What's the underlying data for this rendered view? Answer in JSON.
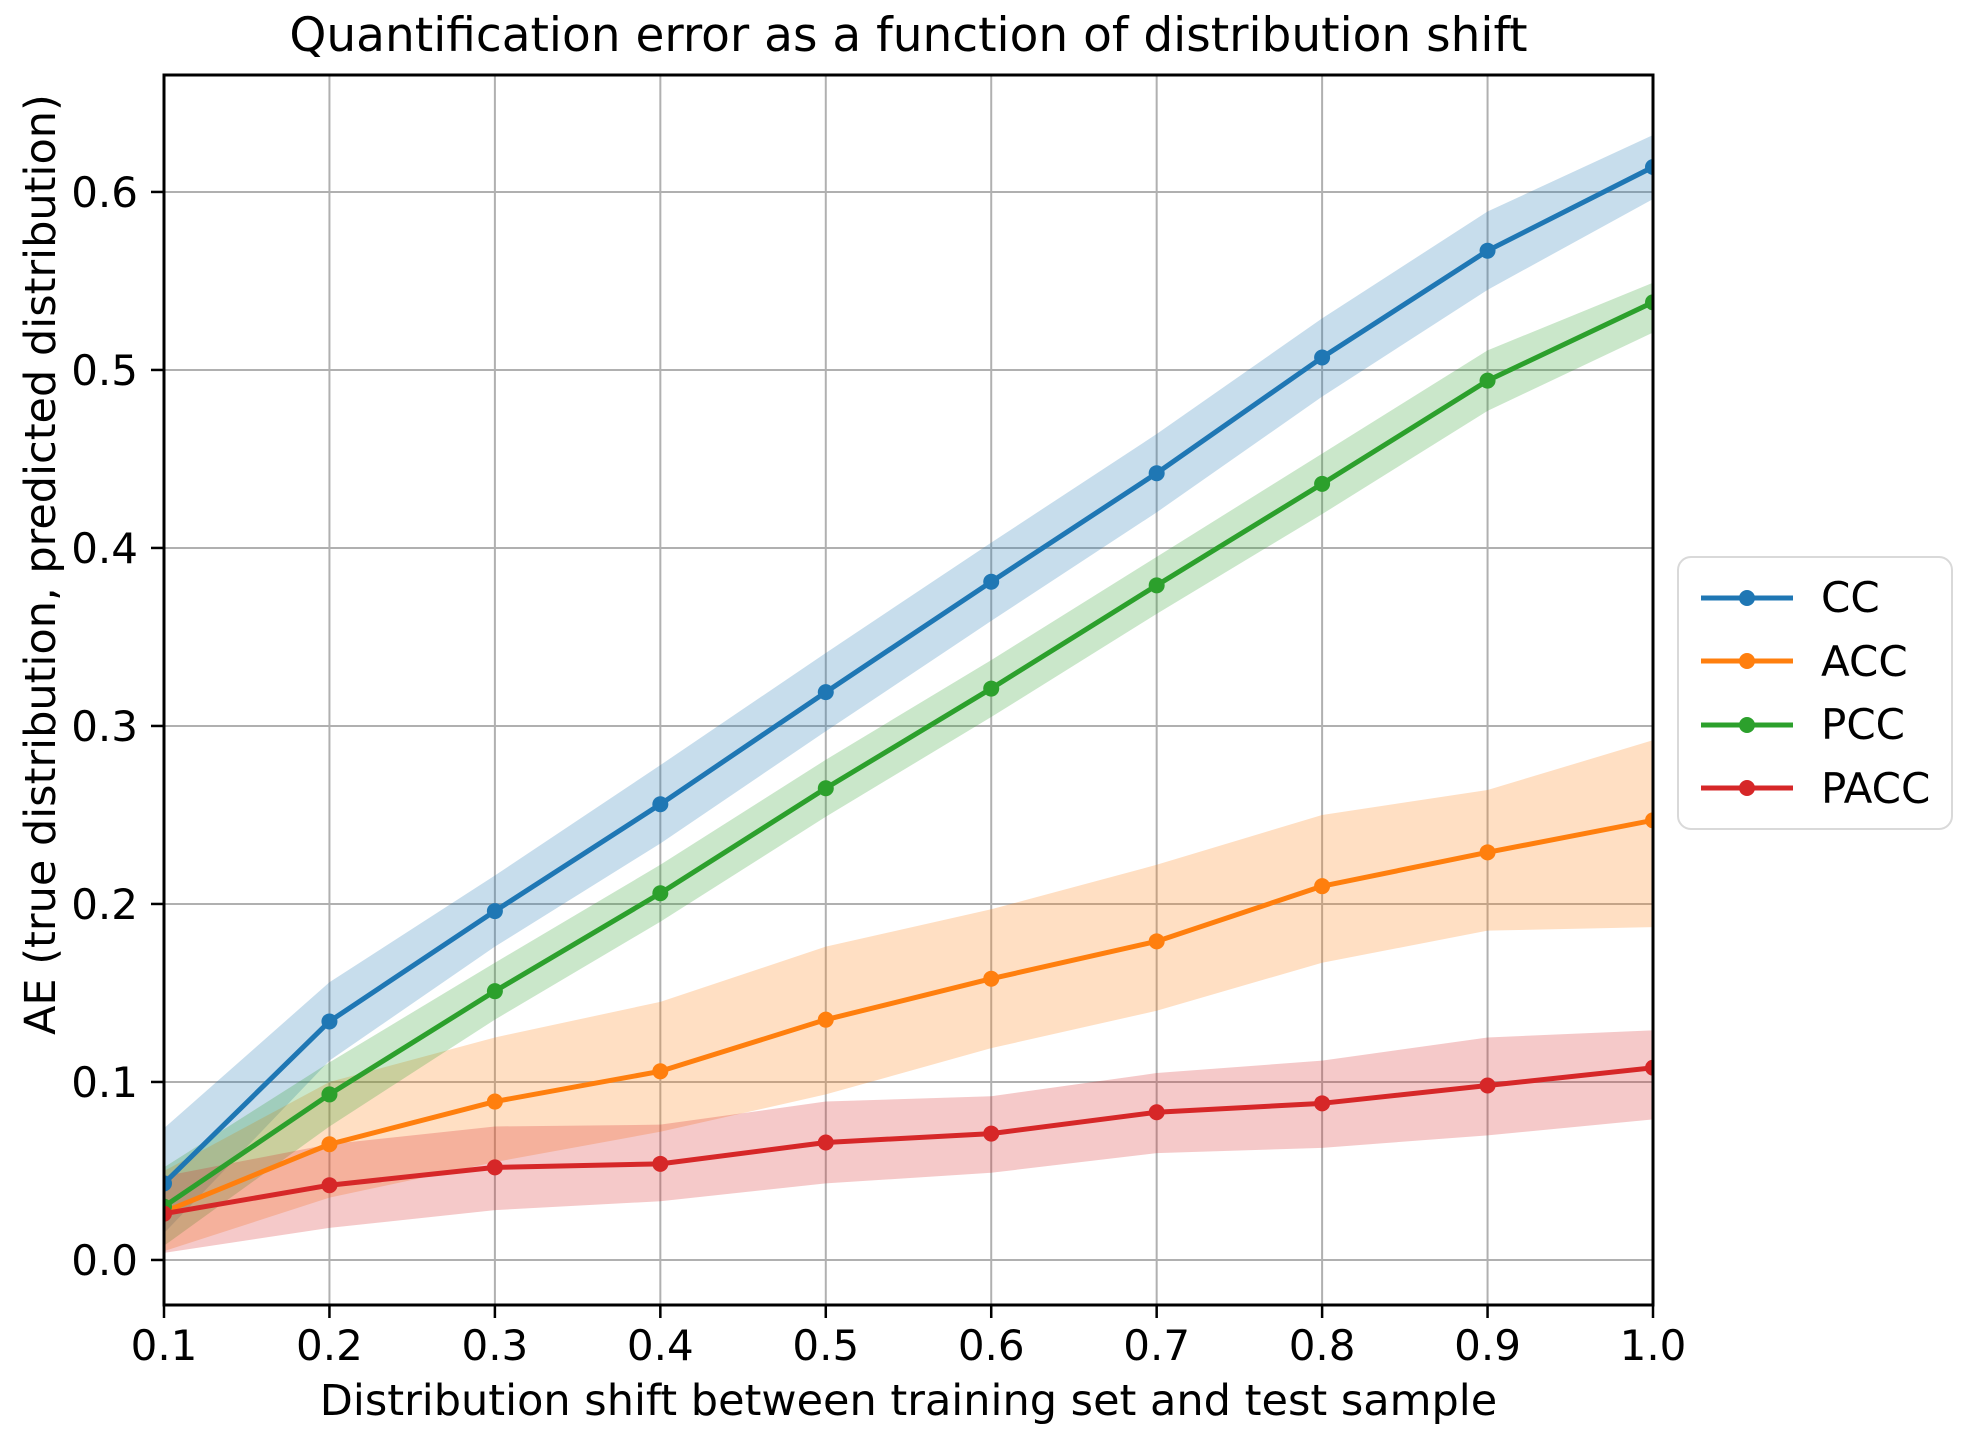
{
  "chart_data": {
    "type": "line",
    "title": "Quantification error as a function of distribution shift",
    "xlabel": "Distribution shift between training set and test sample",
    "ylabel": "AE (true distribution, predicted distribution)",
    "grid": true,
    "legend_position": "right-outside",
    "background_color": "#ffffff",
    "grid_color": "#b0b0b0",
    "spine_color": "#000000",
    "band_alpha": 0.25,
    "xlim": [
      0.1,
      1.0
    ],
    "ylim": [
      -0.0253,
      0.6657
    ],
    "x": [
      0.1,
      0.2,
      0.3,
      0.4,
      0.5,
      0.6,
      0.7,
      0.8,
      0.9,
      1.0
    ],
    "x_ticklabels": [
      "0.1",
      "0.2",
      "0.3",
      "0.4",
      "0.5",
      "0.6",
      "0.7",
      "0.8",
      "0.9",
      "1.0"
    ],
    "y_ticks": [
      0.0,
      0.1,
      0.2,
      0.3,
      0.4,
      0.5,
      0.6
    ],
    "y_ticklabels": [
      "0.0",
      "0.1",
      "0.2",
      "0.3",
      "0.4",
      "0.5",
      "0.6"
    ],
    "series": [
      {
        "name": "CC",
        "color": "#1f77b4",
        "values": [
          0.043,
          0.134,
          0.196,
          0.256,
          0.319,
          0.381,
          0.442,
          0.507,
          0.567,
          0.614
        ],
        "band_lower": [
          0.015,
          0.112,
          0.176,
          0.234,
          0.297,
          0.359,
          0.42,
          0.485,
          0.545,
          0.596
        ],
        "band_upper": [
          0.074,
          0.156,
          0.216,
          0.278,
          0.341,
          0.403,
          0.464,
          0.529,
          0.589,
          0.632
        ]
      },
      {
        "name": "ACC",
        "color": "#ff7f0e",
        "values": [
          0.027,
          0.065,
          0.089,
          0.106,
          0.135,
          0.158,
          0.179,
          0.21,
          0.229,
          0.247
        ],
        "band_lower": [
          0.005,
          0.035,
          0.055,
          0.072,
          0.093,
          0.119,
          0.14,
          0.167,
          0.185,
          0.187
        ],
        "band_upper": [
          0.05,
          0.1,
          0.125,
          0.145,
          0.176,
          0.197,
          0.222,
          0.25,
          0.264,
          0.292
        ]
      },
      {
        "name": "PCC",
        "color": "#2ca02c",
        "values": [
          0.03,
          0.093,
          0.151,
          0.206,
          0.265,
          0.321,
          0.379,
          0.436,
          0.494,
          0.538
        ],
        "band_lower": [
          0.008,
          0.075,
          0.135,
          0.19,
          0.249,
          0.305,
          0.363,
          0.419,
          0.477,
          0.521
        ],
        "band_upper": [
          0.052,
          0.111,
          0.167,
          0.222,
          0.281,
          0.337,
          0.395,
          0.453,
          0.511,
          0.549
        ]
      },
      {
        "name": "PACC",
        "color": "#d62728",
        "values": [
          0.026,
          0.042,
          0.052,
          0.054,
          0.066,
          0.071,
          0.083,
          0.088,
          0.098,
          0.108
        ],
        "band_lower": [
          0.004,
          0.018,
          0.028,
          0.033,
          0.043,
          0.049,
          0.06,
          0.063,
          0.07,
          0.079
        ],
        "band_upper": [
          0.047,
          0.065,
          0.075,
          0.076,
          0.089,
          0.092,
          0.105,
          0.112,
          0.125,
          0.129
        ]
      }
    ]
  }
}
